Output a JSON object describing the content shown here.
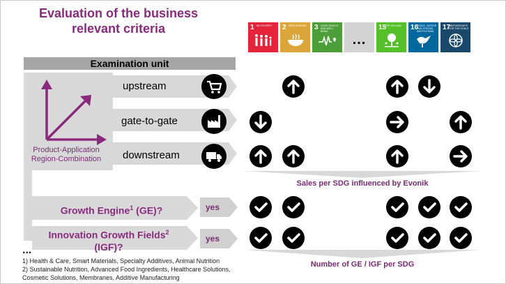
{
  "title": "Evaluation of the business relevant criteria",
  "sdgs": [
    {
      "num": "1",
      "label": "No poverty",
      "color": "#e5243b",
      "icon": "people-icon"
    },
    {
      "num": "2",
      "label": "Zero hunger",
      "color": "#dda63a",
      "icon": "bowl-icon"
    },
    {
      "num": "3",
      "label": "Good health and well-being",
      "color": "#4c9f38",
      "icon": "heartbeat-icon"
    },
    {
      "num": "",
      "label": "",
      "color": "#d3d3d3",
      "icon": "ellipsis-icon",
      "text": "..."
    },
    {
      "num": "15",
      "label": "Life on land",
      "color": "#56c02b",
      "icon": "tree-icon"
    },
    {
      "num": "16",
      "label": "Peace, justice and strong institutions",
      "color": "#00689d",
      "icon": "dove-icon"
    },
    {
      "num": "17",
      "label": "Partnerships for the goals",
      "color": "#19486a",
      "icon": "flower-icon"
    }
  ],
  "examination_unit": "Examination unit",
  "axis_label": "Product-Application Region-Combination",
  "rows": {
    "upstream": "upstream",
    "gate_to_gate": "gate-to-gate",
    "downstream": "downstream"
  },
  "sales_label": "Sales per SDG influenced by Evonik",
  "growth_engine": {
    "label": "Growth Engine",
    "sup": "1",
    "suffix": " (GE)?",
    "answer": "yes"
  },
  "igf": {
    "label": "Innovation Growth Fields",
    "sup": "2",
    "suffix": " (IGF)?",
    "answer": "yes"
  },
  "number_label": "Number of GE / IGF per SDG",
  "ellipsis": "...",
  "footnotes": [
    "1) Health & Care, Smart Materials, Specialty Additives, Animal Nutrition",
    "2) Sustainable Nutrition, Advanced Food Ingredients, Healthcare Solutions,",
    "Cosmetic Solutions, Membranes, Additive Manufacturing"
  ],
  "matrix": {
    "upstream": [
      "",
      "up",
      "",
      "",
      "up",
      "down",
      ""
    ],
    "gate_to_gate": [
      "down",
      "",
      "",
      "",
      "right",
      "",
      "up"
    ],
    "downstream": [
      "up",
      "up",
      "",
      "",
      "up",
      "",
      "right"
    ],
    "growth_engine": [
      "check",
      "check",
      "",
      "",
      "check",
      "check",
      "check"
    ],
    "igf": [
      "check",
      "check",
      "",
      "",
      "check",
      "check",
      "check"
    ]
  }
}
